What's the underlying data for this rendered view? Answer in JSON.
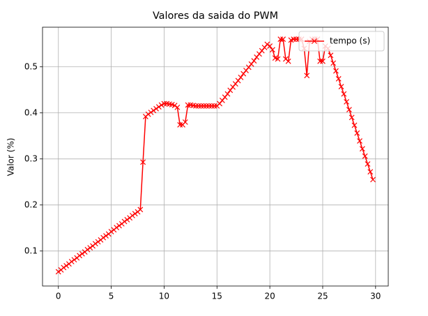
{
  "chart_data": {
    "type": "line",
    "title": "Valores da saida do PWM",
    "ylabel": "Valor (%)",
    "x": [
      0,
      0.25,
      0.5,
      0.75,
      1,
      1.25,
      1.5,
      1.75,
      2,
      2.25,
      2.5,
      2.75,
      3,
      3.25,
      3.5,
      3.75,
      4,
      4.25,
      4.5,
      4.75,
      5,
      5.25,
      5.5,
      5.75,
      6,
      6.25,
      6.5,
      6.75,
      7,
      7.25,
      7.5,
      7.75,
      8,
      8.25,
      8.5,
      8.75,
      9,
      9.25,
      9.5,
      9.75,
      10,
      10.25,
      10.5,
      10.75,
      11,
      11.25,
      11.5,
      11.75,
      12,
      12.25,
      12.5,
      12.75,
      13,
      13.25,
      13.5,
      13.75,
      14,
      14.25,
      14.5,
      14.75,
      15,
      15.25,
      15.5,
      15.75,
      16,
      16.25,
      16.5,
      16.75,
      17,
      17.25,
      17.5,
      17.75,
      18,
      18.25,
      18.5,
      18.75,
      19,
      19.25,
      19.5,
      19.75,
      20,
      20.25,
      20.5,
      20.75,
      21,
      21.25,
      21.5,
      21.75,
      22,
      22.25,
      22.5,
      22.75,
      23,
      23.25,
      23.5,
      23.75,
      24,
      24.25,
      24.5,
      24.75,
      25,
      25.25,
      25.5,
      25.75,
      26,
      26.25,
      26.5,
      26.75,
      27,
      27.25,
      27.5,
      27.75,
      28,
      28.25,
      28.5,
      28.75,
      29,
      29.25,
      29.5,
      29.75
    ],
    "series": [
      {
        "name": "tempo (s)",
        "color": "#ff0000",
        "marker": "x",
        "values": [
          0.055,
          0.059,
          0.064,
          0.068,
          0.072,
          0.077,
          0.081,
          0.085,
          0.09,
          0.094,
          0.098,
          0.103,
          0.107,
          0.111,
          0.116,
          0.12,
          0.124,
          0.129,
          0.133,
          0.137,
          0.142,
          0.146,
          0.151,
          0.155,
          0.159,
          0.164,
          0.168,
          0.172,
          0.177,
          0.181,
          0.185,
          0.19,
          0.293,
          0.392,
          0.397,
          0.401,
          0.405,
          0.409,
          0.413,
          0.417,
          0.42,
          0.42,
          0.419,
          0.418,
          0.416,
          0.412,
          0.374,
          0.374,
          0.38,
          0.417,
          0.417,
          0.416,
          0.415,
          0.415,
          0.415,
          0.415,
          0.415,
          0.415,
          0.415,
          0.415,
          0.415,
          0.42,
          0.427,
          0.434,
          0.441,
          0.449,
          0.456,
          0.463,
          0.47,
          0.477,
          0.485,
          0.492,
          0.499,
          0.506,
          0.513,
          0.521,
          0.528,
          0.535,
          0.542,
          0.549,
          0.545,
          0.537,
          0.519,
          0.517,
          0.56,
          0.56,
          0.517,
          0.512,
          0.558,
          0.56,
          0.56,
          0.56,
          0.56,
          0.54,
          0.481,
          0.555,
          0.56,
          0.56,
          0.56,
          0.512,
          0.512,
          0.545,
          0.54,
          0.525,
          0.508,
          0.491,
          0.474,
          0.457,
          0.441,
          0.424,
          0.407,
          0.39,
          0.373,
          0.356,
          0.339,
          0.322,
          0.306,
          0.289,
          0.272,
          0.255
        ]
      }
    ],
    "xlim": [
      -1.5,
      31.2
    ],
    "ylim": [
      0.024,
      0.586
    ],
    "xticks": [
      0,
      5,
      10,
      15,
      20,
      25,
      30
    ],
    "yticks": [
      0.1,
      0.2,
      0.3,
      0.4,
      0.5
    ],
    "grid": true,
    "legend": "upper right"
  }
}
